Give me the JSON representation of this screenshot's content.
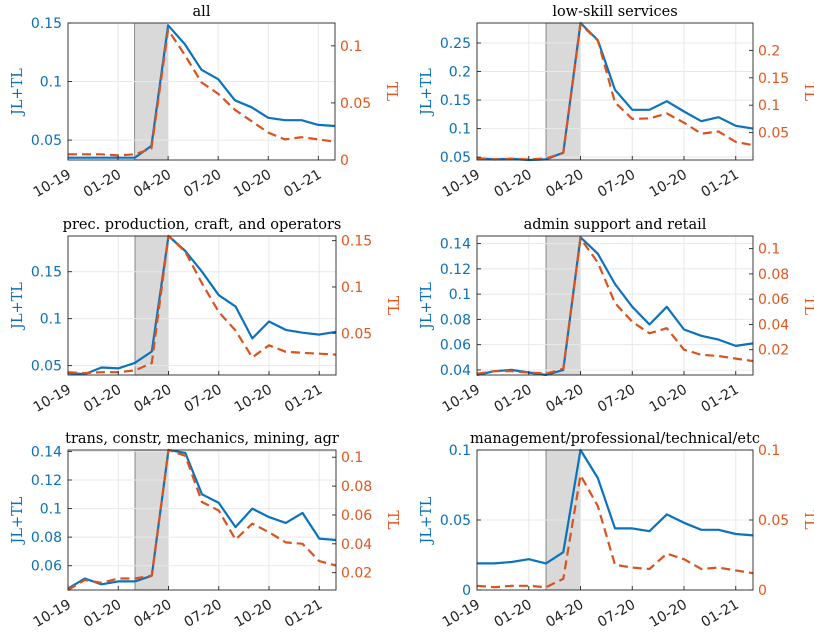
{
  "colors": {
    "jl": "#0b72bd",
    "tl": "#d9531e",
    "recession": "#d9d9d9",
    "grid": "#e8e8e8"
  },
  "chart_data": [
    {
      "type": "line",
      "title": "all",
      "ylabel_left": "JL+TL",
      "ylabel_right": "TL",
      "x": [
        "10-19",
        "11-19",
        "12-19",
        "01-20",
        "02-20",
        "03-20",
        "04-20",
        "05-20",
        "06-20",
        "07-20",
        "08-20",
        "09-20",
        "10-20",
        "11-20",
        "12-20",
        "01-21",
        "02-21"
      ],
      "xtick_labels": [
        "10-19",
        "01-20",
        "04-20",
        "07-20",
        "10-20",
        "01-21"
      ],
      "shaded_range": [
        "02-20",
        "04-20"
      ],
      "ylim_left": [
        0.033,
        0.15
      ],
      "ylim_right": [
        0,
        0.12
      ],
      "yticks_left": [
        {
          "v": 0.05,
          "label": "0.05"
        },
        {
          "v": 0.1,
          "label": "0.1"
        },
        {
          "v": 0.15,
          "label": "0.15"
        }
      ],
      "yticks_right": [
        {
          "v": 0,
          "label": "0"
        },
        {
          "v": 0.05,
          "label": "0.05"
        },
        {
          "v": 0.1,
          "label": "0.1"
        }
      ],
      "series": [
        {
          "name": "JL+TL",
          "axis": "left",
          "values": [
            0.035,
            0.035,
            0.035,
            0.035,
            0.035,
            0.045,
            0.148,
            0.132,
            0.11,
            0.102,
            0.084,
            0.078,
            0.069,
            0.067,
            0.067,
            0.063,
            0.062
          ]
        },
        {
          "name": "TL",
          "axis": "right",
          "values": [
            0.005,
            0.005,
            0.005,
            0.004,
            0.005,
            0.01,
            0.114,
            0.092,
            0.068,
            0.058,
            0.044,
            0.034,
            0.024,
            0.018,
            0.02,
            0.018,
            0.016
          ]
        }
      ]
    },
    {
      "type": "line",
      "title": "low-skill services",
      "ylabel_left": "JL+TL",
      "ylabel_right": "TL",
      "x": [
        "10-19",
        "11-19",
        "12-19",
        "01-20",
        "02-20",
        "03-20",
        "04-20",
        "05-20",
        "06-20",
        "07-20",
        "08-20",
        "09-20",
        "10-20",
        "11-20",
        "12-20",
        "01-21",
        "02-21"
      ],
      "xtick_labels": [
        "10-19",
        "01-20",
        "04-20",
        "07-20",
        "10-20",
        "01-21"
      ],
      "shaded_range": [
        "02-20",
        "04-20"
      ],
      "ylim_left": [
        0.045,
        0.285
      ],
      "ylim_right": [
        0,
        0.25
      ],
      "yticks_left": [
        {
          "v": 0.05,
          "label": "0.05"
        },
        {
          "v": 0.1,
          "label": "0.1"
        },
        {
          "v": 0.15,
          "label": "0.15"
        },
        {
          "v": 0.2,
          "label": "0.2"
        },
        {
          "v": 0.25,
          "label": "0.25"
        }
      ],
      "yticks_right": [
        {
          "v": 0.05,
          "label": "0.05"
        },
        {
          "v": 0.1,
          "label": "0.1"
        },
        {
          "v": 0.15,
          "label": "0.15"
        },
        {
          "v": 0.2,
          "label": "0.2"
        }
      ],
      "series": [
        {
          "name": "JL+TL",
          "axis": "left",
          "values": [
            0.048,
            0.046,
            0.047,
            0.045,
            0.046,
            0.058,
            0.285,
            0.255,
            0.168,
            0.133,
            0.133,
            0.148,
            0.13,
            0.113,
            0.12,
            0.105,
            0.1
          ]
        },
        {
          "name": "TL",
          "axis": "right",
          "values": [
            0.003,
            0.001,
            0.002,
            0.001,
            0.003,
            0.013,
            0.248,
            0.218,
            0.105,
            0.075,
            0.076,
            0.085,
            0.068,
            0.048,
            0.052,
            0.033,
            0.027
          ]
        }
      ]
    },
    {
      "type": "line",
      "title": "prec. production, craft, and operators",
      "ylabel_left": "JL+TL",
      "ylabel_right": "TL",
      "x": [
        "10-19",
        "11-19",
        "12-19",
        "01-20",
        "02-20",
        "03-20",
        "04-20",
        "05-20",
        "06-20",
        "07-20",
        "08-20",
        "09-20",
        "10-20",
        "11-20",
        "12-20",
        "01-21",
        "02-21"
      ],
      "xtick_labels": [
        "10-19",
        "01-20",
        "04-20",
        "07-20",
        "10-20",
        "01-21"
      ],
      "shaded_range": [
        "02-20",
        "04-20"
      ],
      "ylim_left": [
        0.04,
        0.188
      ],
      "ylim_right": [
        0.005,
        0.155
      ],
      "yticks_left": [
        {
          "v": 0.05,
          "label": "0.05"
        },
        {
          "v": 0.1,
          "label": "0.1"
        },
        {
          "v": 0.15,
          "label": "0.15"
        }
      ],
      "yticks_right": [
        {
          "v": 0.05,
          "label": "0.05"
        },
        {
          "v": 0.1,
          "label": "0.1"
        },
        {
          "v": 0.15,
          "label": "0.15"
        }
      ],
      "series": [
        {
          "name": "JL+TL",
          "axis": "left",
          "values": [
            0.042,
            0.041,
            0.048,
            0.047,
            0.053,
            0.065,
            0.188,
            0.172,
            0.15,
            0.125,
            0.113,
            0.079,
            0.097,
            0.088,
            0.085,
            0.083,
            0.086
          ]
        },
        {
          "name": "TL",
          "axis": "right",
          "values": [
            0.008,
            0.007,
            0.008,
            0.008,
            0.01,
            0.018,
            0.155,
            0.138,
            0.104,
            0.073,
            0.053,
            0.024,
            0.037,
            0.03,
            0.029,
            0.028,
            0.027
          ]
        }
      ]
    },
    {
      "type": "line",
      "title": "admin support and retail",
      "ylabel_left": "JL+TL",
      "ylabel_right": "TL",
      "x": [
        "10-19",
        "11-19",
        "12-19",
        "01-20",
        "02-20",
        "03-20",
        "04-20",
        "05-20",
        "06-20",
        "07-20",
        "08-20",
        "09-20",
        "10-20",
        "11-20",
        "12-20",
        "01-21",
        "02-21"
      ],
      "xtick_labels": [
        "10-19",
        "01-20",
        "04-20",
        "07-20",
        "10-20",
        "01-21"
      ],
      "shaded_range": [
        "02-20",
        "04-20"
      ],
      "ylim_left": [
        0.036,
        0.146
      ],
      "ylim_right": [
        0,
        0.11
      ],
      "yticks_left": [
        {
          "v": 0.04,
          "label": "0.04"
        },
        {
          "v": 0.06,
          "label": "0.06"
        },
        {
          "v": 0.08,
          "label": "0.08"
        },
        {
          "v": 0.1,
          "label": "0.1"
        },
        {
          "v": 0.12,
          "label": "0.12"
        },
        {
          "v": 0.14,
          "label": "0.14"
        }
      ],
      "yticks_right": [
        {
          "v": 0.02,
          "label": "0.02"
        },
        {
          "v": 0.04,
          "label": "0.04"
        },
        {
          "v": 0.06,
          "label": "0.06"
        },
        {
          "v": 0.08,
          "label": "0.08"
        },
        {
          "v": 0.1,
          "label": "0.1"
        }
      ],
      "series": [
        {
          "name": "JL+TL",
          "axis": "left",
          "values": [
            0.036,
            0.039,
            0.04,
            0.038,
            0.036,
            0.04,
            0.145,
            0.132,
            0.108,
            0.09,
            0.076,
            0.09,
            0.072,
            0.067,
            0.064,
            0.059,
            0.061
          ]
        },
        {
          "name": "TL",
          "axis": "right",
          "values": [
            0.001,
            0.003,
            0.003,
            0.002,
            0.001,
            0.005,
            0.108,
            0.089,
            0.057,
            0.042,
            0.033,
            0.037,
            0.02,
            0.016,
            0.015,
            0.013,
            0.011
          ]
        }
      ]
    },
    {
      "type": "line",
      "title": "trans, constr, mechanics, mining, agr",
      "ylabel_left": "JL+TL",
      "ylabel_right": "TL",
      "x": [
        "10-19",
        "11-19",
        "12-19",
        "01-20",
        "02-20",
        "03-20",
        "04-20",
        "05-20",
        "06-20",
        "07-20",
        "08-20",
        "09-20",
        "10-20",
        "11-20",
        "12-20",
        "01-21",
        "02-21"
      ],
      "xtick_labels": [
        "10-19",
        "01-20",
        "04-20",
        "07-20",
        "10-20",
        "01-21"
      ],
      "shaded_range": [
        "02-20",
        "04-20"
      ],
      "ylim_left": [
        0.043,
        0.141
      ],
      "ylim_right": [
        0.008,
        0.105
      ],
      "yticks_left": [
        {
          "v": 0.06,
          "label": "0.06"
        },
        {
          "v": 0.08,
          "label": "0.08"
        },
        {
          "v": 0.1,
          "label": "0.1"
        },
        {
          "v": 0.12,
          "label": "0.12"
        },
        {
          "v": 0.14,
          "label": "0.14"
        }
      ],
      "yticks_right": [
        {
          "v": 0.02,
          "label": "0.02"
        },
        {
          "v": 0.04,
          "label": "0.04"
        },
        {
          "v": 0.06,
          "label": "0.06"
        },
        {
          "v": 0.08,
          "label": "0.08"
        },
        {
          "v": 0.1,
          "label": "0.1"
        }
      ],
      "series": [
        {
          "name": "JL+TL",
          "axis": "left",
          "values": [
            0.044,
            0.051,
            0.047,
            0.049,
            0.049,
            0.053,
            0.141,
            0.139,
            0.11,
            0.104,
            0.087,
            0.1,
            0.094,
            0.09,
            0.097,
            0.079,
            0.078
          ]
        },
        {
          "name": "TL",
          "axis": "right",
          "values": [
            0.008,
            0.015,
            0.013,
            0.016,
            0.016,
            0.018,
            0.105,
            0.101,
            0.069,
            0.063,
            0.043,
            0.054,
            0.048,
            0.041,
            0.04,
            0.028,
            0.025
          ]
        }
      ]
    },
    {
      "type": "line",
      "title": "management/professional/technical/etc",
      "ylabel_left": "JL+TL",
      "ylabel_right": "TL",
      "x": [
        "10-19",
        "11-19",
        "12-19",
        "01-20",
        "02-20",
        "03-20",
        "04-20",
        "05-20",
        "06-20",
        "07-20",
        "08-20",
        "09-20",
        "10-20",
        "11-20",
        "12-20",
        "01-21",
        "02-21"
      ],
      "xtick_labels": [
        "10-19",
        "01-20",
        "04-20",
        "07-20",
        "10-20",
        "01-21"
      ],
      "shaded_range": [
        "02-20",
        "04-20"
      ],
      "ylim_left": [
        0,
        0.1
      ],
      "ylim_right": [
        0,
        0.1
      ],
      "yticks_left": [
        {
          "v": 0,
          "label": "0"
        },
        {
          "v": 0.05,
          "label": "0.05"
        },
        {
          "v": 0.1,
          "label": "0.1"
        }
      ],
      "yticks_right": [
        {
          "v": 0,
          "label": "0"
        },
        {
          "v": 0.05,
          "label": "0.05"
        },
        {
          "v": 0.1,
          "label": "0.1"
        }
      ],
      "series": [
        {
          "name": "JL+TL",
          "axis": "left",
          "values": [
            0.019,
            0.019,
            0.02,
            0.022,
            0.019,
            0.027,
            0.1,
            0.08,
            0.044,
            0.044,
            0.042,
            0.054,
            0.048,
            0.043,
            0.043,
            0.04,
            0.039
          ]
        },
        {
          "name": "TL",
          "axis": "right",
          "values": [
            0.003,
            0.002,
            0.003,
            0.003,
            0.002,
            0.008,
            0.082,
            0.06,
            0.018,
            0.016,
            0.015,
            0.026,
            0.022,
            0.015,
            0.016,
            0.014,
            0.012
          ]
        }
      ]
    }
  ]
}
